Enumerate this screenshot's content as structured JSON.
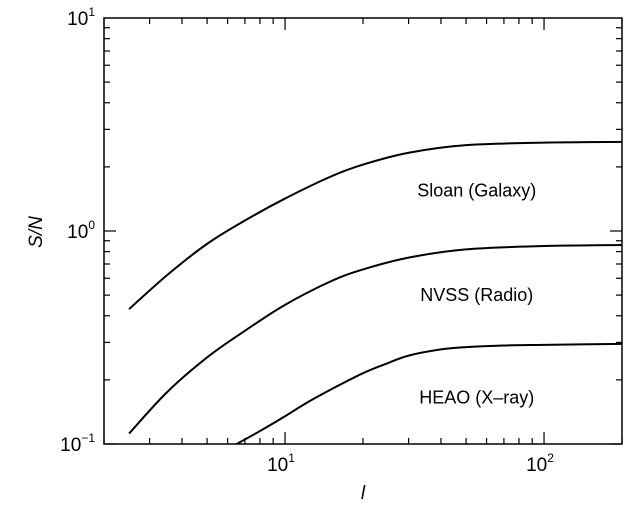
{
  "chart_data": {
    "type": "line",
    "title": "",
    "xlabel": "l",
    "ylabel": "S/N",
    "xscale": "log",
    "yscale": "log",
    "xlim": [
      2,
      200
    ],
    "ylim": [
      0.1,
      10
    ],
    "grid": false,
    "x_ticks": [
      {
        "value": 10,
        "base": "10",
        "exp": "1"
      },
      {
        "value": 100,
        "base": "10",
        "exp": "2"
      }
    ],
    "y_ticks": [
      {
        "value": 0.1,
        "base": "10",
        "exp": "−1"
      },
      {
        "value": 1,
        "base": "10",
        "exp": "0"
      },
      {
        "value": 10,
        "base": "10",
        "exp": "1"
      }
    ],
    "series": [
      {
        "name": "Sloan (Galaxy)",
        "label_at": [
          55,
          1.55
        ],
        "x": [
          2.5,
          3.5,
          5,
          7,
          10,
          15,
          20,
          30,
          50,
          100,
          200
        ],
        "y": [
          0.43,
          0.62,
          0.87,
          1.12,
          1.42,
          1.8,
          2.05,
          2.33,
          2.53,
          2.6,
          2.62
        ]
      },
      {
        "name": "NVSS (Radio)",
        "label_at": [
          55,
          0.5
        ],
        "x": [
          2.5,
          3.5,
          5,
          7,
          10,
          15,
          20,
          30,
          50,
          100,
          200
        ],
        "y": [
          0.112,
          0.175,
          0.255,
          0.34,
          0.45,
          0.58,
          0.66,
          0.75,
          0.82,
          0.85,
          0.86
        ]
      },
      {
        "name": "HEAO (X–ray)",
        "label_at": [
          55,
          0.165
        ],
        "x": [
          6.5,
          8,
          10,
          12,
          15,
          20,
          25,
          30,
          40,
          50,
          70,
          100,
          200
        ],
        "y": [
          0.1,
          0.115,
          0.135,
          0.155,
          0.18,
          0.215,
          0.24,
          0.26,
          0.278,
          0.285,
          0.29,
          0.292,
          0.295
        ]
      }
    ]
  }
}
